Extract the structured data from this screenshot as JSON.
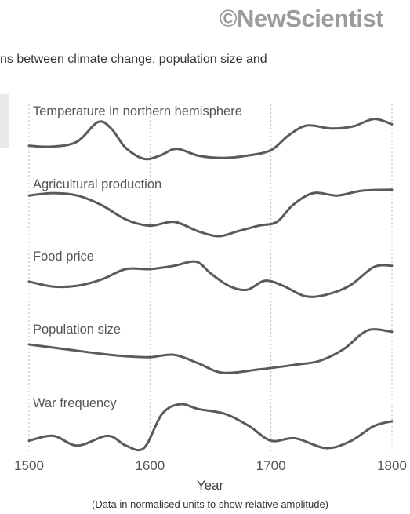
{
  "brand": "©NewScientist",
  "subtitle": "ns between climate change, population size and",
  "chart_data": {
    "type": "line",
    "xlabel": "Year",
    "note": "(Data in normalised units to show relative amplitude)",
    "xlim": [
      1500,
      1800
    ],
    "xticks": [
      1500,
      1600,
      1700,
      1800
    ],
    "grid": "vertical dashed at 1500, 1600, 1700, 1800",
    "panels": [
      {
        "label": "Temperature in northern hemisphere",
        "points": [
          [
            1500,
            0.35
          ],
          [
            1520,
            0.33
          ],
          [
            1540,
            0.45
          ],
          [
            1557,
            0.9
          ],
          [
            1568,
            0.75
          ],
          [
            1580,
            0.3
          ],
          [
            1595,
            0.05
          ],
          [
            1608,
            0.12
          ],
          [
            1622,
            0.28
          ],
          [
            1640,
            0.12
          ],
          [
            1660,
            0.07
          ],
          [
            1680,
            0.12
          ],
          [
            1700,
            0.25
          ],
          [
            1715,
            0.6
          ],
          [
            1730,
            0.82
          ],
          [
            1750,
            0.75
          ],
          [
            1768,
            0.8
          ],
          [
            1785,
            0.97
          ],
          [
            1800,
            0.85
          ]
        ]
      },
      {
        "label": "Agricultural production",
        "points": [
          [
            1500,
            0.85
          ],
          [
            1520,
            0.9
          ],
          [
            1540,
            0.85
          ],
          [
            1560,
            0.65
          ],
          [
            1580,
            0.35
          ],
          [
            1600,
            0.22
          ],
          [
            1620,
            0.3
          ],
          [
            1640,
            0.1
          ],
          [
            1657,
            0.0
          ],
          [
            1672,
            0.1
          ],
          [
            1690,
            0.22
          ],
          [
            1705,
            0.3
          ],
          [
            1718,
            0.65
          ],
          [
            1735,
            0.9
          ],
          [
            1755,
            0.85
          ],
          [
            1775,
            0.95
          ],
          [
            1800,
            0.97
          ]
        ]
      },
      {
        "label": "Food price",
        "points": [
          [
            1500,
            0.4
          ],
          [
            1520,
            0.28
          ],
          [
            1540,
            0.3
          ],
          [
            1560,
            0.45
          ],
          [
            1580,
            0.7
          ],
          [
            1600,
            0.7
          ],
          [
            1620,
            0.78
          ],
          [
            1638,
            0.88
          ],
          [
            1650,
            0.6
          ],
          [
            1665,
            0.3
          ],
          [
            1680,
            0.2
          ],
          [
            1695,
            0.42
          ],
          [
            1710,
            0.3
          ],
          [
            1728,
            0.05
          ],
          [
            1745,
            0.08
          ],
          [
            1765,
            0.3
          ],
          [
            1785,
            0.75
          ],
          [
            1800,
            0.78
          ]
        ]
      },
      {
        "label": "Population size",
        "points": [
          [
            1500,
            0.65
          ],
          [
            1530,
            0.55
          ],
          [
            1560,
            0.45
          ],
          [
            1580,
            0.4
          ],
          [
            1600,
            0.38
          ],
          [
            1620,
            0.43
          ],
          [
            1640,
            0.25
          ],
          [
            1660,
            0.05
          ],
          [
            1690,
            0.12
          ],
          [
            1720,
            0.22
          ],
          [
            1740,
            0.3
          ],
          [
            1760,
            0.55
          ],
          [
            1780,
            0.95
          ],
          [
            1800,
            0.92
          ]
        ]
      },
      {
        "label": "War frequency",
        "points": [
          [
            1500,
            0.2
          ],
          [
            1520,
            0.3
          ],
          [
            1540,
            0.1
          ],
          [
            1565,
            0.3
          ],
          [
            1580,
            0.1
          ],
          [
            1595,
            0.05
          ],
          [
            1610,
            0.75
          ],
          [
            1625,
            0.95
          ],
          [
            1640,
            0.85
          ],
          [
            1662,
            0.75
          ],
          [
            1682,
            0.5
          ],
          [
            1700,
            0.2
          ],
          [
            1720,
            0.25
          ],
          [
            1745,
            0.05
          ],
          [
            1765,
            0.18
          ],
          [
            1785,
            0.5
          ],
          [
            1800,
            0.6
          ]
        ]
      }
    ]
  }
}
